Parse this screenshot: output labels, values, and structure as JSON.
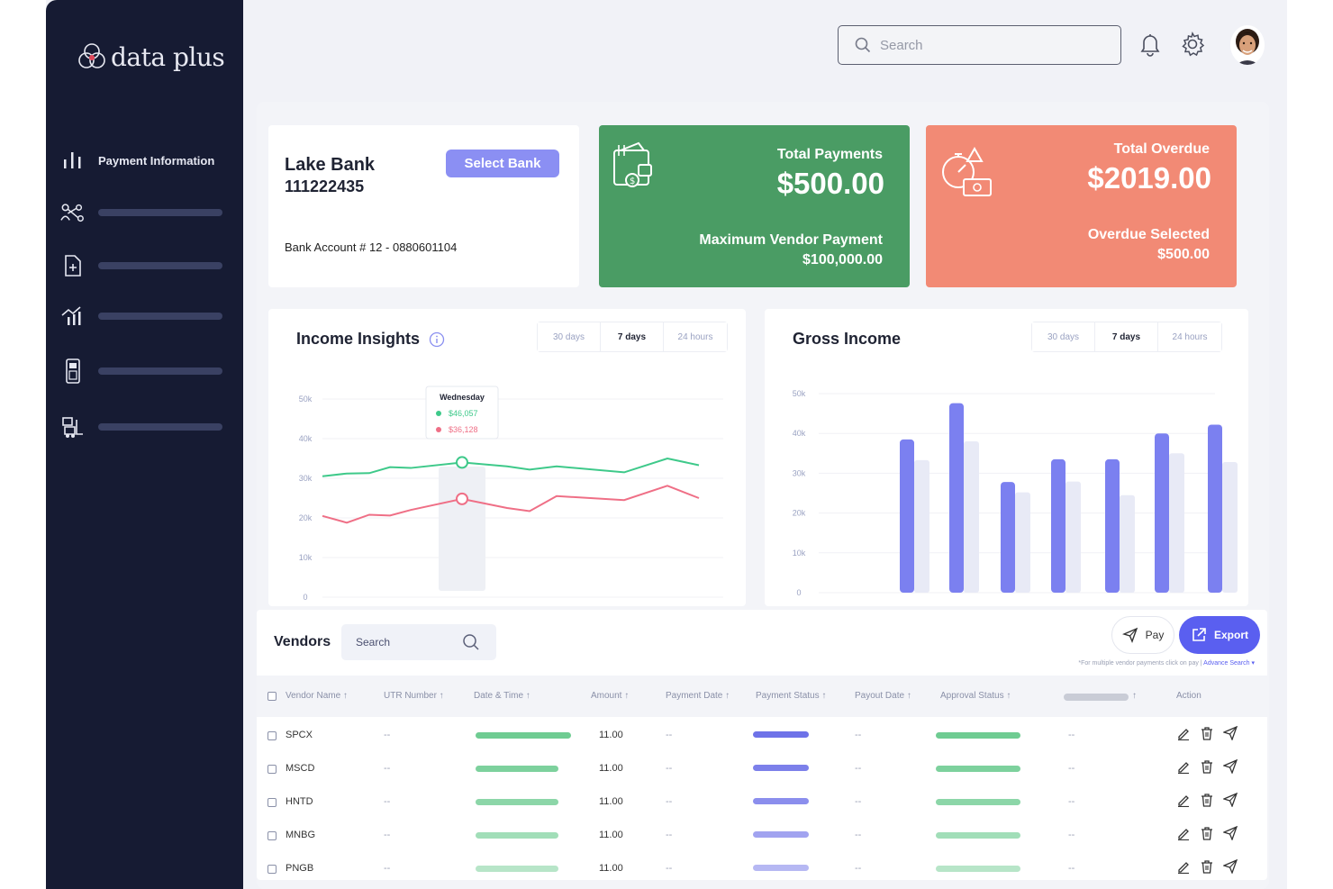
{
  "brand": {
    "name": "data plus"
  },
  "sidebar": {
    "items": [
      {
        "label": "Payment Information",
        "icon": "bar-chart-icon"
      },
      {
        "label": "",
        "icon": "network-icon"
      },
      {
        "label": "",
        "icon": "file-add-icon"
      },
      {
        "label": "",
        "icon": "trend-chart-icon"
      },
      {
        "label": "",
        "icon": "pos-terminal-icon"
      },
      {
        "label": "",
        "icon": "forklift-icon"
      }
    ]
  },
  "header": {
    "search_placeholder": "Search"
  },
  "bank": {
    "name": "Lake Bank",
    "number": "111222435",
    "select_label": "Select Bank",
    "account": "Bank Account # 12 - 0880601104"
  },
  "payments": {
    "title": "Total Payments",
    "value": "$500.00",
    "max_label": "Maximum Vendor Payment",
    "max_value": "$100,000.00",
    "color": "#4a9c64"
  },
  "overdue": {
    "title": "Total Overdue",
    "value": "$2019.00",
    "selected_label": "Overdue Selected",
    "selected_value": "$500.00",
    "color": "#f28a75"
  },
  "income_insights": {
    "title": "Income Insights",
    "ranges": [
      "30 days",
      "7 days",
      "24 hours"
    ],
    "active_range": "7 days",
    "tooltip": {
      "day": "Wednesday",
      "green": "$46,057",
      "red": "$36,128"
    },
    "chart_data": {
      "type": "line",
      "yticks": [
        "50k",
        "40k",
        "30k",
        "20k",
        "10k",
        "0"
      ],
      "ylim": [
        0,
        50000
      ],
      "x": [
        0,
        1,
        2,
        3,
        4,
        5,
        6,
        7,
        8,
        9,
        10,
        11
      ],
      "series": [
        {
          "color": "#3ec98a",
          "values": [
            30500,
            31200,
            31300,
            32800,
            32600,
            34000,
            33000,
            32200,
            33000,
            31500,
            35000,
            33300
          ]
        },
        {
          "color": "#ef6f86",
          "values": [
            20500,
            18800,
            20800,
            20600,
            22000,
            24800,
            22500,
            21700,
            25500,
            24500,
            28100,
            25000
          ]
        }
      ]
    }
  },
  "gross_income": {
    "title": "Gross Income",
    "ranges": [
      "30 days",
      "7 days",
      "24 hours"
    ],
    "active_range": "7 days",
    "chart_data": {
      "type": "bar",
      "yticks": [
        "50k",
        "40k",
        "30k",
        "20k",
        "10k",
        "0"
      ],
      "ylim": [
        0,
        50000
      ],
      "series": [
        {
          "color": "#7b80f0",
          "values": [
            38500,
            47600,
            27800,
            33500,
            33500,
            40000,
            42200
          ]
        },
        {
          "color": "#e8eaf6",
          "values": [
            33300,
            38000,
            25200,
            27900,
            24500,
            35000,
            32800
          ]
        }
      ]
    }
  },
  "vendors": {
    "title": "Vendors",
    "search_placeholder": "Search",
    "pay_label": "Pay",
    "export_label": "Export",
    "hint": "*For multiple vendor payments click on pay |",
    "hint_link": "Advance Search ▾",
    "columns": [
      "Vendor Name ↑",
      "UTR Number ↑",
      "Date & Time ↑",
      "Amount ↑",
      "Payment Date ↑",
      "Payment Status ↑",
      "Payout Date ↑",
      "Approval Status ↑",
      "↑",
      "Action"
    ],
    "rows": [
      {
        "name": "SPCX",
        "utr": "--",
        "amount": "11.00",
        "pdate": "--",
        "payout": "--",
        "col9": "--",
        "shade": 1.0
      },
      {
        "name": "MSCD",
        "utr": "--",
        "amount": "11.00",
        "pdate": "--",
        "payout": "--",
        "col9": "--",
        "shade": 0.9
      },
      {
        "name": "HNTD",
        "utr": "--",
        "amount": "11.00",
        "pdate": "--",
        "payout": "--",
        "col9": "--",
        "shade": 0.8
      },
      {
        "name": "MNBG",
        "utr": "--",
        "amount": "11.00",
        "pdate": "--",
        "payout": "--",
        "col9": "--",
        "shade": 0.65
      },
      {
        "name": "PNGB",
        "utr": "--",
        "amount": "11.00",
        "pdate": "--",
        "payout": "--",
        "col9": "--",
        "shade": 0.5
      }
    ]
  }
}
